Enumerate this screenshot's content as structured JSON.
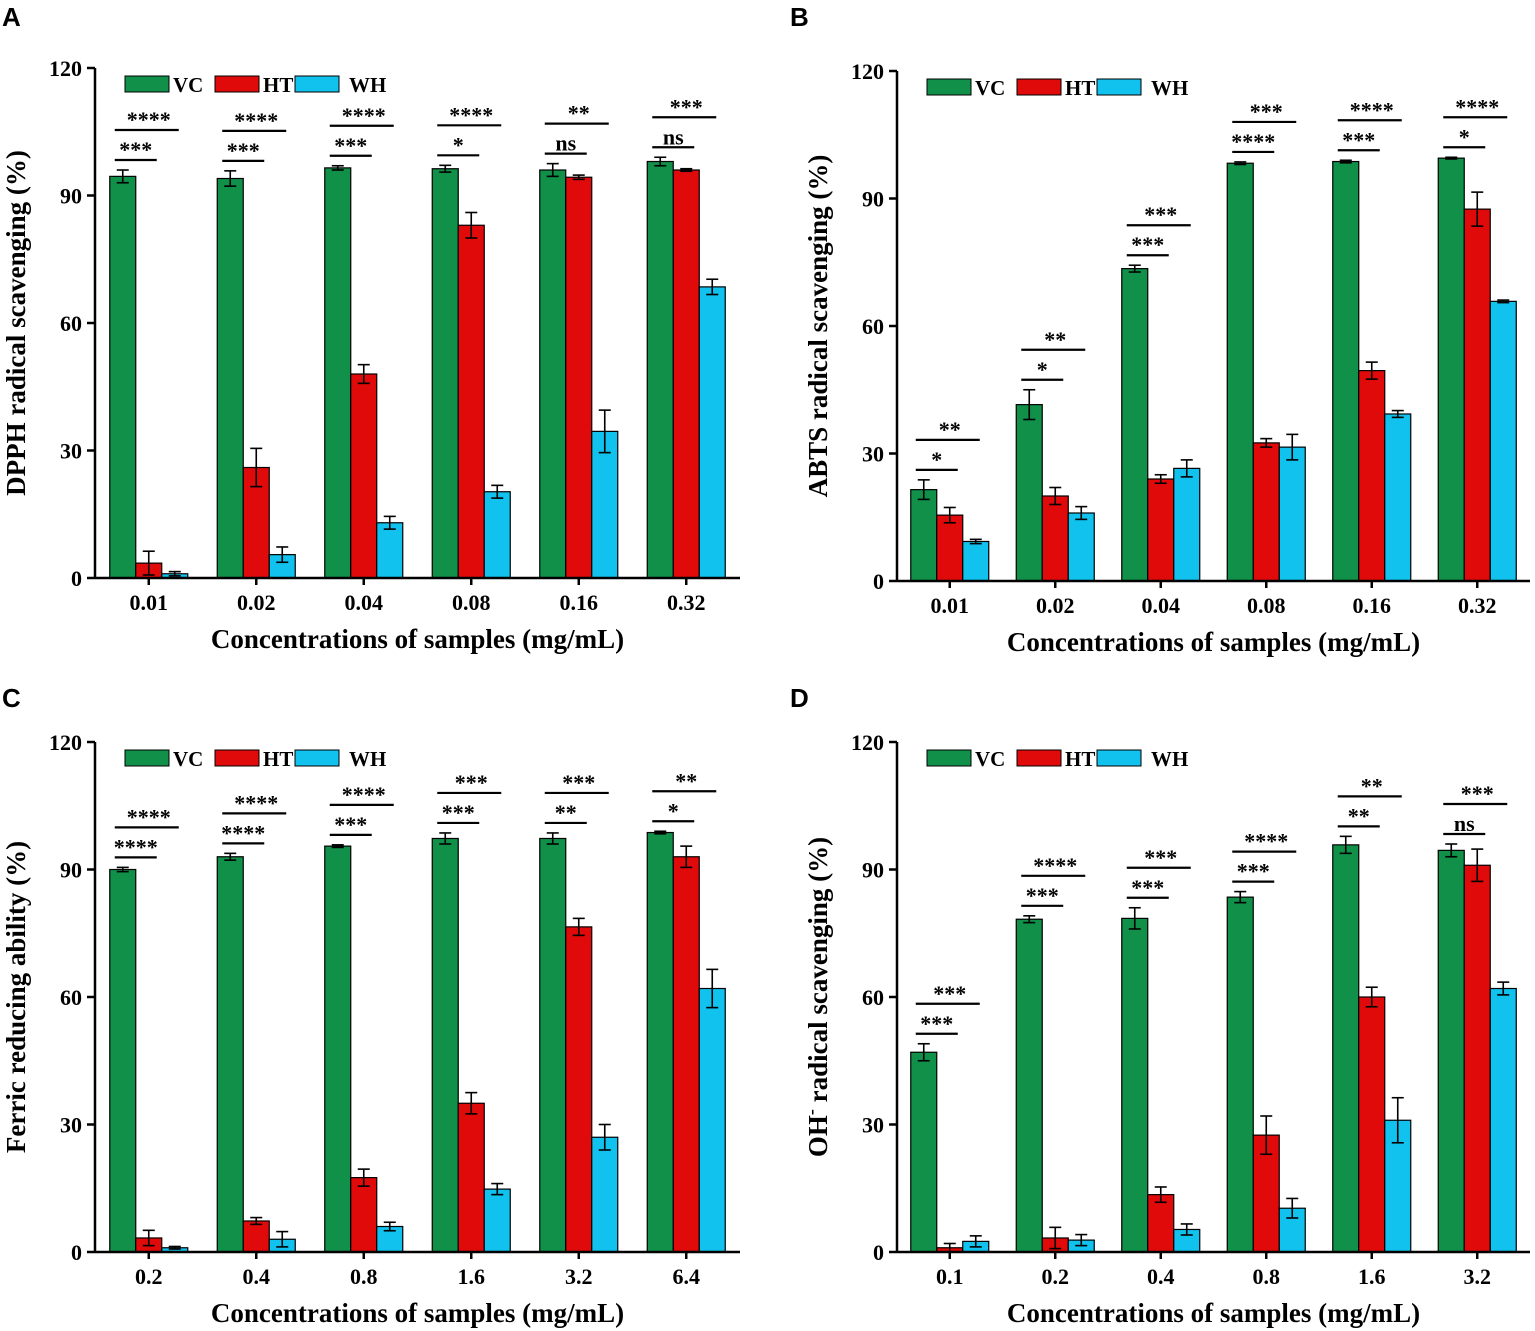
{
  "colors": {
    "VC": "#109048",
    "HT": "#e00a0a",
    "WH": "#12c2ee",
    "outline": "#000000"
  },
  "legend": [
    "VC",
    "HT",
    "WH"
  ],
  "chart_data": [
    {
      "id": "A",
      "letter": "A",
      "type": "bar",
      "ylabel": "DPPH radical scavenging (%)",
      "xlabel": "Concentrations of samples (mg/mL)",
      "categories": [
        "0.01",
        "0.02",
        "0.04",
        "0.08",
        "0.16",
        "0.32"
      ],
      "ylim": [
        0,
        120
      ],
      "yticks": [
        "0",
        "30",
        "60",
        "90",
        "120"
      ],
      "series": [
        {
          "name": "VC",
          "values": [
            94.5,
            94.0,
            96.5,
            96.3,
            96.0,
            98.0
          ],
          "errors": [
            1.5,
            1.8,
            0.5,
            0.8,
            1.5,
            1.0
          ]
        },
        {
          "name": "HT",
          "values": [
            3.5,
            26.0,
            48.0,
            83.0,
            94.3,
            96.0
          ],
          "errors": [
            2.8,
            4.5,
            2.2,
            3.0,
            0.5,
            0.3
          ]
        },
        {
          "name": "WH",
          "values": [
            1.0,
            5.5,
            13.0,
            20.3,
            34.5,
            68.5
          ],
          "errors": [
            0.5,
            1.8,
            1.5,
            1.5,
            5.0,
            1.8
          ]
        }
      ],
      "significance": [
        {
          "group": 0,
          "lower": "***",
          "upper": "****"
        },
        {
          "group": 1,
          "lower": "***",
          "upper": "****"
        },
        {
          "group": 2,
          "lower": "***",
          "upper": "****"
        },
        {
          "group": 3,
          "lower": "*",
          "upper": "****"
        },
        {
          "group": 4,
          "lower": "ns",
          "upper": "**"
        },
        {
          "group": 5,
          "lower": "ns",
          "upper": "***"
        }
      ]
    },
    {
      "id": "B",
      "letter": "B",
      "type": "bar",
      "ylabel": "ABTS radical scavenging (%)",
      "xlabel": "Concentrations of samples (mg/mL)",
      "categories": [
        "0.01",
        "0.02",
        "0.04",
        "0.08",
        "0.16",
        "0.32"
      ],
      "ylim": [
        0,
        120
      ],
      "yticks": [
        "0",
        "30",
        "60",
        "90",
        "120"
      ],
      "series": [
        {
          "name": "VC",
          "values": [
            21.5,
            41.5,
            73.5,
            98.3,
            98.7,
            99.5
          ],
          "errors": [
            2.3,
            3.5,
            0.8,
            0.3,
            0.3,
            0.2
          ]
        },
        {
          "name": "HT",
          "values": [
            15.5,
            20.0,
            24.0,
            32.5,
            49.5,
            87.5
          ],
          "errors": [
            1.8,
            2.0,
            1.0,
            1.0,
            2.0,
            4.0
          ]
        },
        {
          "name": "WH",
          "values": [
            9.3,
            16.0,
            26.5,
            31.5,
            39.3,
            65.8
          ],
          "errors": [
            0.5,
            1.5,
            2.0,
            3.0,
            0.8,
            0.3
          ]
        }
      ],
      "significance": [
        {
          "group": 0,
          "lower": "*",
          "upper": "**"
        },
        {
          "group": 1,
          "lower": "*",
          "upper": "**"
        },
        {
          "group": 2,
          "lower": "***",
          "upper": "***"
        },
        {
          "group": 3,
          "lower": "****",
          "upper": "***"
        },
        {
          "group": 4,
          "lower": "***",
          "upper": "****"
        },
        {
          "group": 5,
          "lower": "*",
          "upper": "****"
        }
      ]
    },
    {
      "id": "C",
      "letter": "C",
      "type": "bar",
      "ylabel": "Ferric reducing ability (%)",
      "xlabel": "Concentrations of samples (mg/mL)",
      "categories": [
        "0.2",
        "0.4",
        "0.8",
        "1.6",
        "3.2",
        "6.4"
      ],
      "ylim": [
        0,
        120
      ],
      "yticks": [
        "0",
        "30",
        "60",
        "90",
        "120"
      ],
      "series": [
        {
          "name": "VC",
          "values": [
            90.0,
            93.0,
            95.5,
            97.3,
            97.3,
            98.7
          ],
          "errors": [
            0.5,
            0.8,
            0.3,
            1.3,
            1.3,
            0.3
          ]
        },
        {
          "name": "HT",
          "values": [
            3.3,
            7.3,
            17.5,
            35.0,
            76.5,
            93.0
          ],
          "errors": [
            1.8,
            0.8,
            2.0,
            2.5,
            2.0,
            2.5
          ]
        },
        {
          "name": "WH",
          "values": [
            1.0,
            3.0,
            6.0,
            14.8,
            27.0,
            62.0
          ],
          "errors": [
            0.3,
            1.8,
            1.0,
            1.3,
            3.0,
            4.5
          ]
        }
      ],
      "significance": [
        {
          "group": 0,
          "lower": "****",
          "upper": "****"
        },
        {
          "group": 1,
          "lower": "****",
          "upper": "****"
        },
        {
          "group": 2,
          "lower": "***",
          "upper": "****"
        },
        {
          "group": 3,
          "lower": "***",
          "upper": "***"
        },
        {
          "group": 4,
          "lower": "**",
          "upper": "***"
        },
        {
          "group": 5,
          "lower": "*",
          "upper": "**"
        }
      ]
    },
    {
      "id": "D",
      "letter": "D",
      "type": "bar",
      "ylabel": "OH",
      "ylabel_sup": "-",
      "ylabel_rest": " radical scavenging (%)",
      "xlabel": "Concentrations of samples (mg/mL)",
      "categories": [
        "0.1",
        "0.2",
        "0.4",
        "0.8",
        "1.6",
        "3.2"
      ],
      "ylim": [
        0,
        120
      ],
      "yticks": [
        "0",
        "30",
        "60",
        "90",
        "120"
      ],
      "series": [
        {
          "name": "VC",
          "values": [
            47.0,
            78.3,
            78.5,
            83.5,
            95.8,
            94.5
          ],
          "errors": [
            2.0,
            0.8,
            2.5,
            1.3,
            2.0,
            1.5
          ]
        },
        {
          "name": "HT",
          "values": [
            1.0,
            3.3,
            13.5,
            27.5,
            60.0,
            91.0
          ],
          "errors": [
            1.0,
            2.5,
            1.8,
            4.5,
            2.3,
            3.8
          ]
        },
        {
          "name": "WH",
          "values": [
            2.5,
            2.8,
            5.3,
            10.3,
            31.0,
            62.0
          ],
          "errors": [
            1.3,
            1.3,
            1.3,
            2.3,
            5.3,
            1.5
          ]
        }
      ],
      "significance": [
        {
          "group": 0,
          "lower": "***",
          "upper": "***"
        },
        {
          "group": 1,
          "lower": "***",
          "upper": "****"
        },
        {
          "group": 2,
          "lower": "***",
          "upper": "***"
        },
        {
          "group": 3,
          "lower": "***",
          "upper": "****"
        },
        {
          "group": 4,
          "lower": "**",
          "upper": "**"
        },
        {
          "group": 5,
          "lower": "ns",
          "upper": "***"
        }
      ]
    }
  ]
}
